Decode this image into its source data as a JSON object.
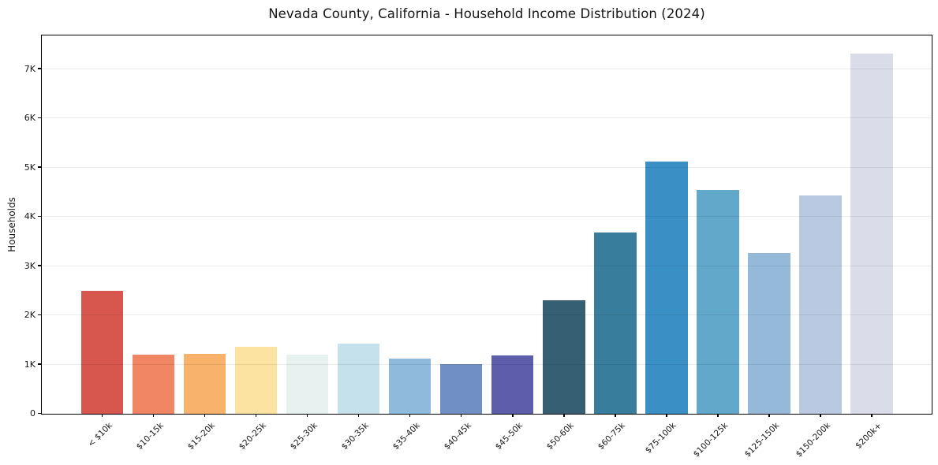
{
  "chart_data": {
    "type": "bar",
    "title": "Nevada County, California - Household Income Distribution (2024)",
    "xlabel": "",
    "ylabel": "Households",
    "categories": [
      "< $10k",
      "$10-15k",
      "$15-20k",
      "$20-25k",
      "$25-30k",
      "$30-35k",
      "$35-40k",
      "$40-45k",
      "$45-50k",
      "$50-60k",
      "$60-75k",
      "$75-100k",
      "$100-125k",
      "$125-150k",
      "$150-200k",
      "$200k+"
    ],
    "values": [
      2490,
      1190,
      1210,
      1360,
      1200,
      1420,
      1120,
      1000,
      1180,
      2290,
      3680,
      5110,
      4530,
      3250,
      4420,
      7300
    ],
    "bar_colors": [
      "#d7574f",
      "#f08663",
      "#f8b26c",
      "#fce3a2",
      "#e7f2f0",
      "#c5e1ec",
      "#90badb",
      "#6f8fc5",
      "#5d5dac",
      "#375f74",
      "#387d9b",
      "#3a90c5",
      "#61a8ca",
      "#95bad9",
      "#b9c9e1",
      "#dbdcea"
    ],
    "ytick_values": [
      0,
      1000,
      2000,
      3000,
      4000,
      5000,
      6000,
      7000
    ],
    "ytick_labels": [
      "0",
      "1K",
      "2K",
      "3K",
      "4K",
      "5K",
      "6K",
      "7K"
    ],
    "ylim": [
      0,
      7680
    ],
    "grid": "horizontal",
    "grid_over_bars": true,
    "legend": "none",
    "background_color": "#ffffff",
    "spine_color": "#000000",
    "gridline_color": "#ececec",
    "text_color": "#151515"
  }
}
